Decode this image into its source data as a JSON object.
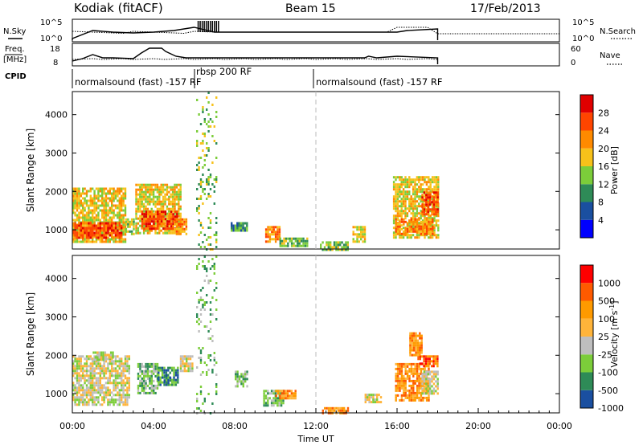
{
  "header": {
    "station": "Kodiak (fitACF)",
    "beam": "Beam 15",
    "date": "17/Feb/2013"
  },
  "nsky_panel": {
    "left_label": "N.Sky",
    "right_label": "N.Search",
    "left_ticks": [
      "10^5",
      "10^0"
    ],
    "right_ticks": [
      "10^5",
      "10^0"
    ]
  },
  "freq_panel": {
    "left_label_line1": "Freq.",
    "left_label_line2": "[MHz]",
    "right_label": "Nave",
    "left_ticks": [
      "18",
      "8"
    ],
    "right_ticks": [
      "60",
      "0"
    ]
  },
  "cpid": {
    "label": "CPID",
    "segments": [
      "normalsound (fast) -157 RF",
      "rbsp 200 RF",
      "normalsound (fast) -157 RF"
    ]
  },
  "colors": {
    "power_scale": [
      "#0000ff",
      "#1a4fa0",
      "#2e8b57",
      "#7ccd3a",
      "#f7c11a",
      "#ff8a00",
      "#ff4500",
      "#e00000"
    ],
    "velocity_scale": [
      "#ff0000",
      "#ff5a00",
      "#ff9a00",
      "#ffb43a",
      "#bebebe",
      "#7ccd3a",
      "#2e8b57",
      "#1a4fa0"
    ]
  },
  "chart_data": [
    {
      "type": "heatmap",
      "title": "",
      "ylabel": "Slant Range [km]",
      "xlabel": "Time UT",
      "yticks": [
        "1000",
        "2000",
        "3000",
        "4000"
      ],
      "ylim": [
        500,
        4600
      ],
      "xlim": [
        0,
        24
      ],
      "colorbar_label": "Power [dB]",
      "colorbar_ticks": [
        "4",
        "8",
        "12",
        "16",
        "20",
        "24",
        "28"
      ],
      "patches": [
        {
          "t0": 0.0,
          "t1": 2.6,
          "r0": 700,
          "r1": 2100,
          "level": 4
        },
        {
          "t0": 0.0,
          "t1": 2.4,
          "r0": 800,
          "r1": 1200,
          "level": 6
        },
        {
          "t0": 2.6,
          "t1": 3.0,
          "r0": 900,
          "r1": 1300,
          "level": 3
        },
        {
          "t0": 3.1,
          "t1": 5.3,
          "r0": 900,
          "r1": 2200,
          "level": 4
        },
        {
          "t0": 3.4,
          "t1": 5.2,
          "r0": 1000,
          "r1": 1500,
          "level": 6
        },
        {
          "t0": 5.0,
          "t1": 5.6,
          "r0": 900,
          "r1": 1300,
          "level": 5
        },
        {
          "t0": 6.1,
          "t1": 7.1,
          "r0": 500,
          "r1": 4600,
          "level": 3
        },
        {
          "t0": 7.8,
          "t1": 8.6,
          "r0": 1000,
          "r1": 1200,
          "level": 2
        },
        {
          "t0": 9.5,
          "t1": 10.2,
          "r0": 700,
          "r1": 1100,
          "level": 5
        },
        {
          "t0": 10.2,
          "t1": 11.6,
          "r0": 550,
          "r1": 800,
          "level": 3
        },
        {
          "t0": 12.2,
          "t1": 13.6,
          "r0": 500,
          "r1": 700,
          "level": 3
        },
        {
          "t0": 13.8,
          "t1": 14.4,
          "r0": 700,
          "r1": 1100,
          "level": 4
        },
        {
          "t0": 15.8,
          "t1": 18.0,
          "r0": 800,
          "r1": 2400,
          "level": 4
        },
        {
          "t0": 15.9,
          "t1": 17.8,
          "r0": 900,
          "r1": 1300,
          "level": 5
        },
        {
          "t0": 17.2,
          "t1": 18.0,
          "r0": 1400,
          "r1": 2000,
          "level": 6
        }
      ]
    },
    {
      "type": "heatmap",
      "title": "",
      "ylabel": "Slant Range [km]",
      "xlabel": "Time UT",
      "yticks": [
        "1000",
        "2000",
        "3000",
        "4000"
      ],
      "ylim": [
        500,
        4600
      ],
      "xlim": [
        0,
        24
      ],
      "colorbar_label": "Velocity [m s^-1]",
      "colorbar_ticks": [
        "1000",
        "500",
        "100",
        "25",
        "-25",
        "-100",
        "-500",
        "-1000"
      ],
      "patches": [
        {
          "t0": 0.0,
          "t1": 2.8,
          "r0": 700,
          "r1": 2000,
          "level": 4
        },
        {
          "t0": 1.0,
          "t1": 2.0,
          "r0": 1900,
          "r1": 2100,
          "level": 4
        },
        {
          "t0": 3.2,
          "t1": 4.2,
          "r0": 1000,
          "r1": 1800,
          "level": 5
        },
        {
          "t0": 4.2,
          "t1": 5.2,
          "r0": 1200,
          "r1": 1700,
          "level": 6
        },
        {
          "t0": 4.5,
          "t1": 4.8,
          "r0": 1300,
          "r1": 1500,
          "level": 7
        },
        {
          "t0": 5.3,
          "t1": 5.9,
          "r0": 1600,
          "r1": 2000,
          "level": 4
        },
        {
          "t0": 6.1,
          "t1": 7.1,
          "r0": 500,
          "r1": 4600,
          "level": 5
        },
        {
          "t0": 8.0,
          "t1": 8.6,
          "r0": 1200,
          "r1": 1600,
          "level": 5
        },
        {
          "t0": 9.4,
          "t1": 10.4,
          "r0": 700,
          "r1": 1100,
          "level": 5
        },
        {
          "t0": 10.0,
          "t1": 11.0,
          "r0": 900,
          "r1": 1100,
          "level": 2
        },
        {
          "t0": 12.3,
          "t1": 13.6,
          "r0": 500,
          "r1": 650,
          "level": 2
        },
        {
          "t0": 14.4,
          "t1": 15.2,
          "r0": 800,
          "r1": 1000,
          "level": 4
        },
        {
          "t0": 15.9,
          "t1": 17.6,
          "r0": 800,
          "r1": 1800,
          "level": 2
        },
        {
          "t0": 17.0,
          "t1": 18.0,
          "r0": 1700,
          "r1": 2000,
          "level": 1
        },
        {
          "t0": 17.2,
          "t1": 18.0,
          "r0": 1000,
          "r1": 1600,
          "level": 4
        },
        {
          "t0": 16.6,
          "t1": 17.2,
          "r0": 2000,
          "r1": 2600,
          "level": 2
        }
      ]
    }
  ],
  "xaxis": {
    "ticks": [
      "00:00",
      "04:00",
      "08:00",
      "12:00",
      "16:00",
      "20:00",
      "00:00"
    ],
    "label": "Time UT"
  }
}
